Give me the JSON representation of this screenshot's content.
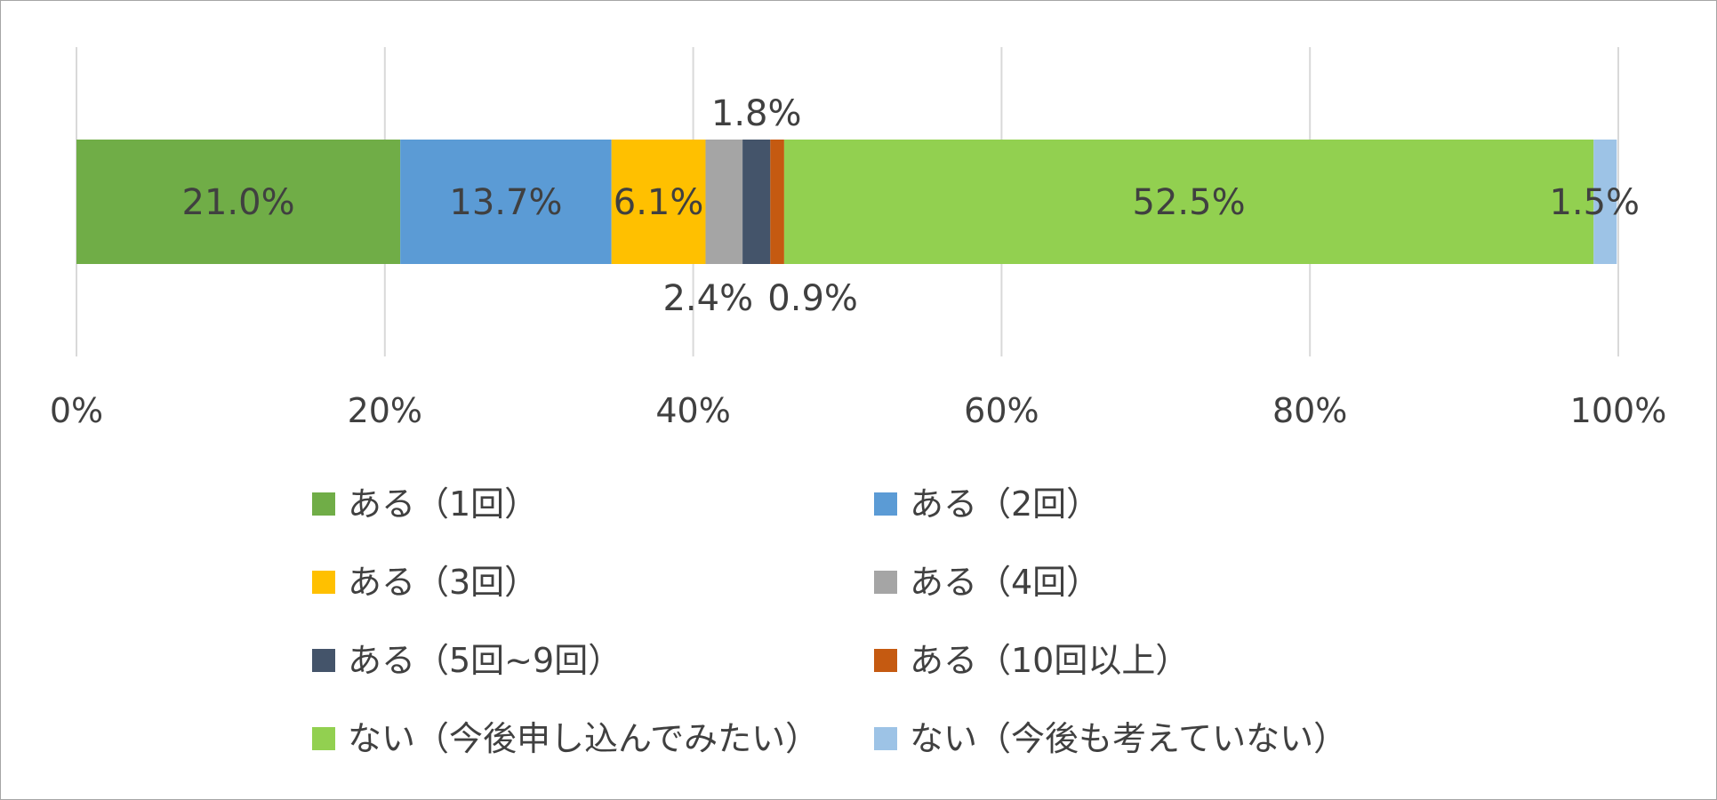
{
  "chart_data": {
    "type": "bar",
    "orientation": "horizontal",
    "stacked": "percent",
    "title": "",
    "xlabel": "",
    "ylabel": "",
    "xlim": [
      0,
      100
    ],
    "x_ticks": [
      "0%",
      "20%",
      "40%",
      "60%",
      "80%",
      "100%"
    ],
    "grid": true,
    "legend_position": "bottom",
    "categories": [
      ""
    ],
    "series": [
      {
        "name": "ある（1回）",
        "values": [
          21.0
        ],
        "label": "21.0%",
        "color": "#70ad47",
        "label_position": "center"
      },
      {
        "name": "ある（2回）",
        "values": [
          13.7
        ],
        "label": "13.7%",
        "color": "#5b9bd5",
        "label_position": "center"
      },
      {
        "name": "ある（3回）",
        "values": [
          6.1
        ],
        "label": "6.1%",
        "color": "#ffc000",
        "label_position": "center"
      },
      {
        "name": "ある（4回）",
        "values": [
          2.4
        ],
        "label": "2.4%",
        "color": "#a5a5a5",
        "label_position": "below"
      },
      {
        "name": "ある（5回~9回）",
        "values": [
          1.8
        ],
        "label": "1.8%",
        "color": "#44546a",
        "label_position": "above"
      },
      {
        "name": "ある（10回以上）",
        "values": [
          0.9
        ],
        "label": "0.9%",
        "color": "#c55a11",
        "label_position": "below"
      },
      {
        "name": "ない（今後申し込んでみたい）",
        "values": [
          52.5
        ],
        "label": "52.5%",
        "color": "#92d050",
        "label_position": "center"
      },
      {
        "name": "ない（今後も考えていない）",
        "values": [
          1.5
        ],
        "label": "1.5%",
        "color": "#9dc3e6",
        "label_position": "center"
      }
    ]
  }
}
